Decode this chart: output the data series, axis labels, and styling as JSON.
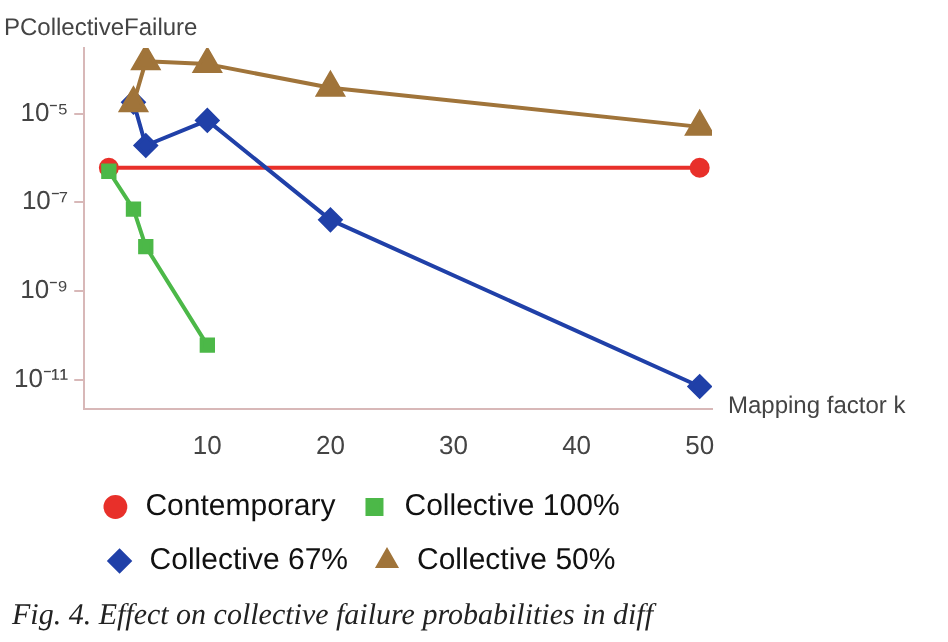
{
  "chart_data": {
    "type": "line",
    "xlabel": "Mapping factor k",
    "ylabel": "PCollectiveFailure",
    "log": "y",
    "xlim": [
      0,
      51
    ],
    "xticks": [
      10,
      20,
      30,
      40,
      50
    ],
    "ylim": [
      2.2e-12,
      0.0003
    ],
    "yticks": [
      {
        "value": 1e-05,
        "label": "10⁻⁵"
      },
      {
        "value": 1e-07,
        "label": "10⁻⁷"
      },
      {
        "value": 1e-09,
        "label": "10⁻⁹"
      },
      {
        "value": 1e-11,
        "label": "10⁻¹¹"
      }
    ],
    "grid": false,
    "legend": "bottom",
    "line_style": "solid",
    "annotations": [
      "Fig. 4. Effect on collective failure probabilities in diff"
    ],
    "series": [
      {
        "name": "Contemporary",
        "color": "#e8302a",
        "marker": "circle",
        "x": [
          2,
          50
        ],
        "values": [
          6e-07,
          6e-07
        ]
      },
      {
        "name": "Collective 100%",
        "color": "#4cb848",
        "marker": "square",
        "x": [
          2,
          4,
          5,
          10
        ],
        "values": [
          5e-07,
          7e-08,
          1e-08,
          6e-11
        ]
      },
      {
        "name": "Collective 67%",
        "color": "#2040a8",
        "marker": "diamond",
        "x": [
          4,
          5,
          10,
          20,
          50
        ],
        "values": [
          1.8e-05,
          1.9e-06,
          7e-06,
          4e-08,
          7e-12
        ]
      },
      {
        "name": "Collective 50%",
        "color": "#a0743a",
        "marker": "triangle",
        "x": [
          4,
          5,
          10,
          20,
          50
        ],
        "values": [
          1.7e-05,
          0.00015,
          0.00013,
          3.8e-05,
          5e-06
        ]
      }
    ]
  }
}
